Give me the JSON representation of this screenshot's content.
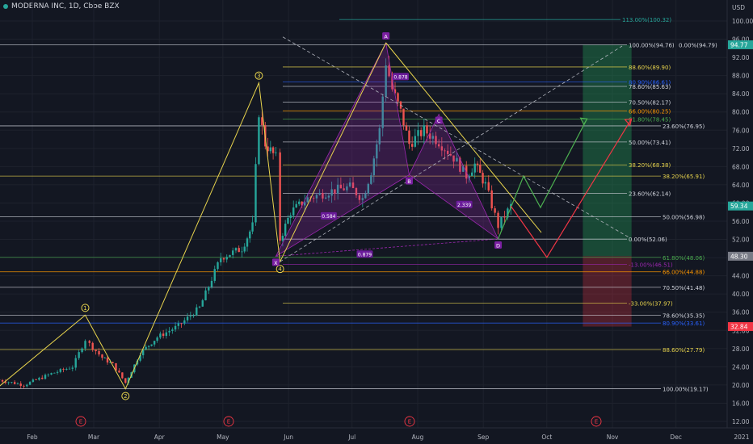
{
  "header": {
    "symbol_title": "MODERNA INC, 1D, Cboe BZX",
    "currency": "USD"
  },
  "chart_data": {
    "type": "candlestick",
    "title": "MODERNA INC, 1D, Cboe BZX",
    "ylabel": "USD",
    "ylim": [
      10,
      104
    ],
    "grid": true,
    "y_ticks": [
      12,
      16,
      20,
      24,
      28,
      32,
      36,
      40,
      44,
      48,
      52,
      56,
      60,
      64,
      68,
      72,
      76,
      80,
      84,
      88,
      92,
      96,
      100
    ],
    "x_ticks": [
      "Feb",
      "Mar",
      "Apr",
      "May",
      "Jun",
      "Jul",
      "Aug",
      "Sep",
      "Oct",
      "Nov",
      "Dec",
      "2021"
    ],
    "earnings_markers": [
      "E",
      "E",
      "E",
      "E"
    ],
    "price_tags": [
      {
        "label": "94.77",
        "value": 94.77,
        "color": "#26a69a"
      },
      {
        "label": "59.34",
        "value": 59.34,
        "color": "#26a69a"
      },
      {
        "label": "48.30",
        "value": 48.3,
        "color": "#787b86"
      },
      {
        "label": "32.84",
        "value": 32.84,
        "color": "#f23645"
      }
    ],
    "price_path": [
      {
        "date": "2020-01-15",
        "price": 21.2
      },
      {
        "date": "2020-01-28",
        "price": 20.0
      },
      {
        "date": "2020-02-10",
        "price": 22.5
      },
      {
        "date": "2020-02-20",
        "price": 24.0
      },
      {
        "date": "2020-02-26",
        "price": 30.0
      },
      {
        "date": "2020-02-28",
        "price": 29.0
      },
      {
        "date": "2020-03-05",
        "price": 26.0
      },
      {
        "date": "2020-03-10",
        "price": 24.5
      },
      {
        "date": "2020-03-16",
        "price": 20.5
      },
      {
        "date": "2020-03-23",
        "price": 27.0
      },
      {
        "date": "2020-03-31",
        "price": 30.5
      },
      {
        "date": "2020-04-10",
        "price": 33.0
      },
      {
        "date": "2020-04-20",
        "price": 37.0
      },
      {
        "date": "2020-04-30",
        "price": 48.0
      },
      {
        "date": "2020-05-10",
        "price": 50.0
      },
      {
        "date": "2020-05-15",
        "price": 55.0
      },
      {
        "date": "2020-05-18",
        "price": 80.0
      },
      {
        "date": "2020-05-21",
        "price": 73.0
      },
      {
        "date": "2020-05-26",
        "price": 70.0
      },
      {
        "date": "2020-05-28",
        "price": 52.0
      },
      {
        "date": "2020-06-02",
        "price": 58.0
      },
      {
        "date": "2020-06-10",
        "price": 61.0
      },
      {
        "date": "2020-06-20",
        "price": 62.5
      },
      {
        "date": "2020-06-30",
        "price": 63.5
      },
      {
        "date": "2020-07-06",
        "price": 61.0
      },
      {
        "date": "2020-07-10",
        "price": 67.0
      },
      {
        "date": "2020-07-14",
        "price": 76.0
      },
      {
        "date": "2020-07-17",
        "price": 91.0
      },
      {
        "date": "2020-07-20",
        "price": 85.0
      },
      {
        "date": "2020-07-24",
        "price": 80.0
      },
      {
        "date": "2020-07-28",
        "price": 73.0
      },
      {
        "date": "2020-08-04",
        "price": 76.0
      },
      {
        "date": "2020-08-11",
        "price": 73.5
      },
      {
        "date": "2020-08-18",
        "price": 70.0
      },
      {
        "date": "2020-08-24",
        "price": 66.0
      },
      {
        "date": "2020-08-28",
        "price": 68.5
      },
      {
        "date": "2020-09-02",
        "price": 64.0
      },
      {
        "date": "2020-09-08",
        "price": 55.0
      },
      {
        "date": "2020-09-14",
        "price": 59.34
      }
    ],
    "swing_points": [
      {
        "label": "1",
        "date": "2020-02-26",
        "price": 35.35
      },
      {
        "label": "2",
        "date": "2020-03-16",
        "price": 19.17
      },
      {
        "label": "3",
        "date": "2020-05-18",
        "price": 86.4
      },
      {
        "label": "4",
        "date": "2020-05-28",
        "price": 47.1
      },
      {
        "label": "A",
        "date": "2020-07-17",
        "price": 95.21
      },
      {
        "label": "B",
        "date": "2020-07-28",
        "price": 66.2
      },
      {
        "label": "C",
        "date": "2020-08-11",
        "price": 79.5
      },
      {
        "label": "D",
        "date": "2020-09-08",
        "price": 52.1
      },
      {
        "label": "X",
        "date": "2020-05-26",
        "price": 48.3
      }
    ],
    "harmonic_ratios": [
      "0.584",
      "0.878",
      "2.339",
      "0.879"
    ],
    "fib_levels": [
      {
        "label": "113.00%(100.32)",
        "price": 100.32,
        "color": "#26a69a"
      },
      {
        "label": "100.00%(94.76)",
        "price": 94.76,
        "color": "#d1d4dc"
      },
      {
        "label": "0.00%(94.79)",
        "price": 94.79,
        "color": "#d1d4dc"
      },
      {
        "label": "88.60%(89.90)",
        "price": 89.9,
        "color": "#e8d44d"
      },
      {
        "label": "80.90%(86.61)",
        "price": 86.61,
        "color": "#2962ff"
      },
      {
        "label": "78.60%(85.63)",
        "price": 85.63,
        "color": "#d1d4dc"
      },
      {
        "label": "70.50%(82.17)",
        "price": 82.17,
        "color": "#d1d4dc"
      },
      {
        "label": "66.00%(80.25)",
        "price": 80.25,
        "color": "#ff9800"
      },
      {
        "label": "61.80%(78.45)",
        "price": 78.45,
        "color": "#4caf50"
      },
      {
        "label": "23.60%(76.95)",
        "price": 76.95,
        "color": "#d1d4dc"
      },
      {
        "label": "50.00%(73.41)",
        "price": 73.41,
        "color": "#d1d4dc"
      },
      {
        "label": "38.20%(68.38)",
        "price": 68.38,
        "color": "#e8d44d"
      },
      {
        "label": "38.20%(65.91)",
        "price": 65.91,
        "color": "#e8d44d"
      },
      {
        "label": "23.60%(62.14)",
        "price": 62.14,
        "color": "#d1d4dc"
      },
      {
        "label": "50.00%(56.98)",
        "price": 56.98,
        "color": "#d1d4dc"
      },
      {
        "label": "0.00%(52.06)",
        "price": 52.06,
        "color": "#d1d4dc"
      },
      {
        "label": "61.80%(48.06)",
        "price": 48.06,
        "color": "#4caf50"
      },
      {
        "label": "-13.00%(46.51)",
        "price": 46.51,
        "color": "#9c27b0"
      },
      {
        "label": "66.00%(44.88)",
        "price": 44.88,
        "color": "#ff9800"
      },
      {
        "label": "70.50%(41.48)",
        "price": 41.48,
        "color": "#d1d4dc"
      },
      {
        "label": "-33.00%(37.97)",
        "price": 37.97,
        "color": "#e8d44d"
      },
      {
        "label": "78.60%(35.35)",
        "price": 35.35,
        "color": "#d1d4dc"
      },
      {
        "label": "80.90%(33.61)",
        "price": 33.61,
        "color": "#2962ff"
      },
      {
        "label": "88.60%(27.79)",
        "price": 27.79,
        "color": "#e8d44d"
      },
      {
        "label": "100.00%(19.17)",
        "price": 19.17,
        "color": "#d1d4dc"
      }
    ],
    "position_box": {
      "entry": 48.3,
      "target": 94.77,
      "stop": 32.84,
      "start_date": "2020-10-18",
      "end_date": "2020-11-10"
    },
    "projections": {
      "bull": [
        {
          "date": "2020-09-08",
          "price": 52.1
        },
        {
          "date": "2020-09-20",
          "price": 65.9
        },
        {
          "date": "2020-09-28",
          "price": 59.0
        },
        {
          "date": "2020-10-20",
          "price": 78.5
        }
      ],
      "bear": [
        {
          "date": "2020-09-14",
          "price": 59.34
        },
        {
          "date": "2020-10-01",
          "price": 48.06
        },
        {
          "date": "2020-11-10",
          "price": 78.5
        }
      ]
    },
    "colors": {
      "up": "#26a69a",
      "down": "#ef5350",
      "background": "#131722",
      "bull_path": "#4caf50",
      "bear_path": "#f23645",
      "wave": "#e8d44d",
      "harmonic": "#9c27b0"
    }
  }
}
